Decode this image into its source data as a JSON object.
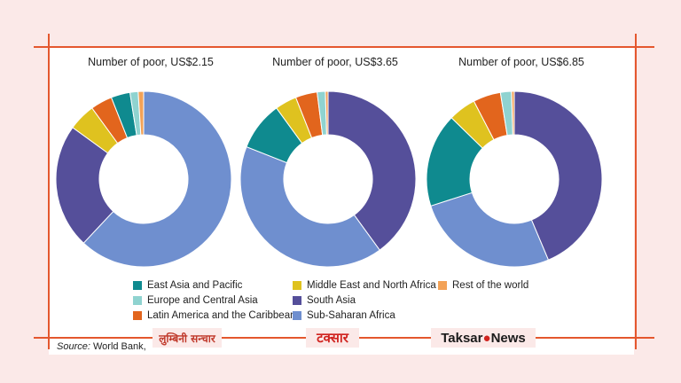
{
  "chart_data": [
    {
      "type": "pie",
      "donut": true,
      "title": "Number of poor, US$2.15",
      "categories": [
        "Sub-Saharan Africa",
        "South Asia",
        "Middle East and North Africa",
        "Latin America and the Caribbean",
        "East Asia and Pacific",
        "Europe and Central Asia",
        "Rest of the world"
      ],
      "values": [
        62,
        23,
        5,
        4,
        3.5,
        1.5,
        1
      ]
    },
    {
      "type": "pie",
      "donut": true,
      "title": "Number of poor, US$3.65",
      "categories": [
        "South Asia",
        "Sub-Saharan Africa",
        "East Asia and Pacific",
        "Middle East and North Africa",
        "Latin America and the Caribbean",
        "Europe and Central Asia",
        "Rest of the world"
      ],
      "values": [
        40,
        41,
        9,
        4,
        4,
        1.5,
        0.5
      ]
    },
    {
      "type": "pie",
      "donut": true,
      "title": "Number of poor, US$6.85",
      "categories": [
        "South Asia",
        "Sub-Saharan Africa",
        "East Asia and Pacific",
        "Middle East and North Africa",
        "Latin America and the Caribbean",
        "Europe and Central Asia",
        "Rest of the world"
      ],
      "values": [
        43,
        26,
        17,
        5,
        5,
        2,
        0.5
      ]
    }
  ],
  "colors": {
    "East Asia and Pacific": "#0f8a8f",
    "Europe and Central Asia": "#8fd3d0",
    "Latin America and the Caribbean": "#e2651d",
    "Middle East and North Africa": "#dfc21f",
    "South Asia": "#554f9a",
    "Sub-Saharan Africa": "#6f8fcf",
    "Rest of the world": "#f3a257"
  },
  "legend": [
    {
      "label": "East Asia and Pacific",
      "color": "#0f8a8f"
    },
    {
      "label": "Europe and Central Asia",
      "color": "#8fd3d0"
    },
    {
      "label": "Latin America and the Caribbean",
      "color": "#e2651d"
    },
    {
      "label": "Middle East and North Africa",
      "color": "#dfc21f"
    },
    {
      "label": "South Asia",
      "color": "#554f9a"
    },
    {
      "label": "Sub-Saharan Africa",
      "color": "#6f8fcf"
    },
    {
      "label": "Rest of the world",
      "color": "#f3a257"
    }
  ],
  "source": {
    "label": "Source:",
    "text": " World Bank,"
  },
  "logos": {
    "one": "लुम्बिनी सन्चार",
    "two": "टक्सार",
    "three_a": "Taksar",
    "three_mark": "●",
    "three_b": "News"
  }
}
